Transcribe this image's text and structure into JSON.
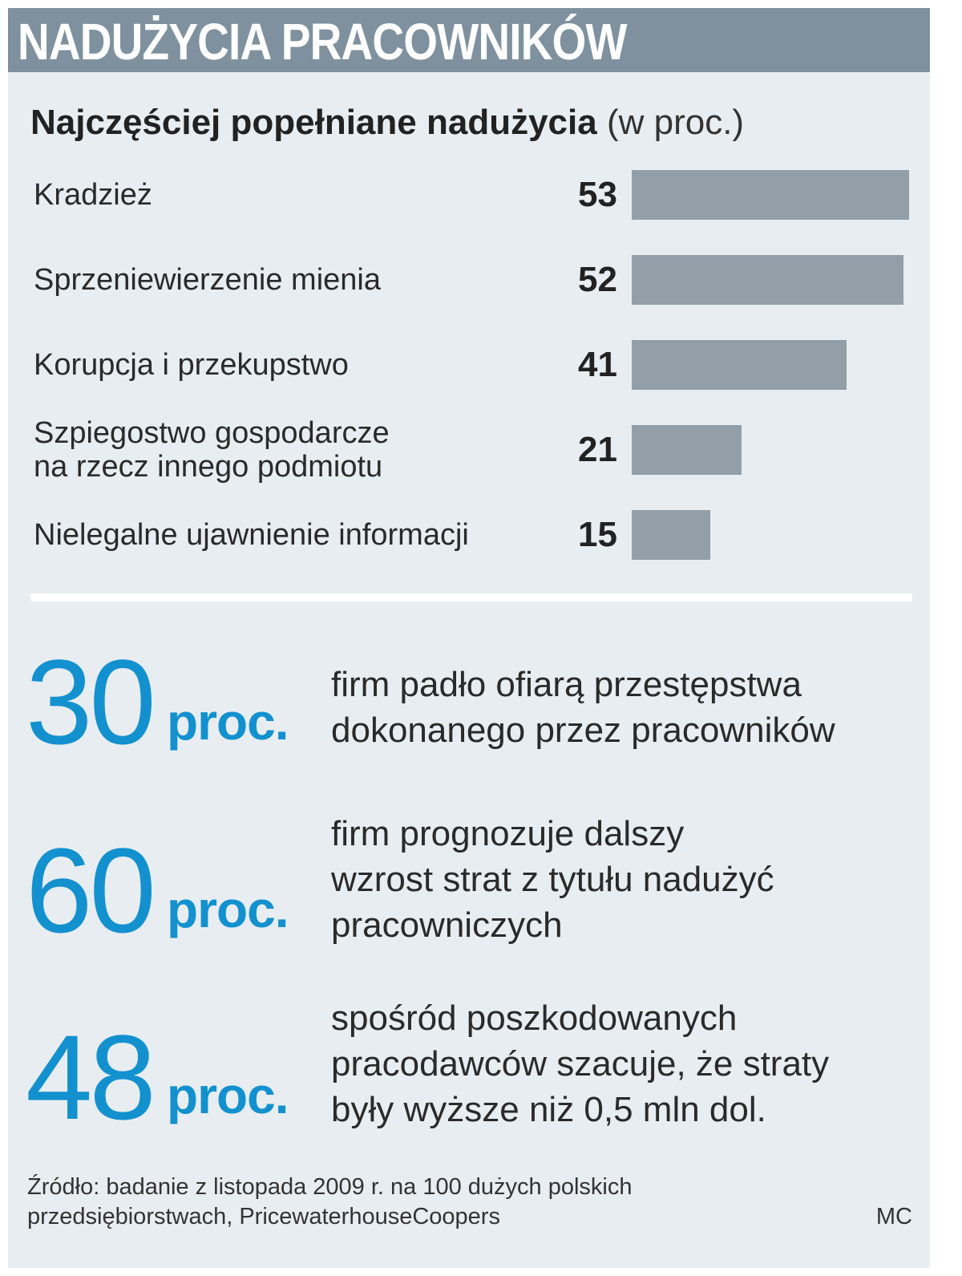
{
  "header": {
    "title": "NADUŻYCIA PRACOWNIKÓW"
  },
  "chart_data": {
    "type": "bar",
    "orientation": "horizontal",
    "title": "Najczęściej popełniane nadużycia",
    "unit_label": "(w proc.)",
    "categories": [
      [
        "Kradzież"
      ],
      [
        "Sprzeniewierzenie mienia"
      ],
      [
        "Korupcja i przekupstwo"
      ],
      [
        "Szpiegostwo gospodarcze",
        "na rzecz innego podmiotu"
      ],
      [
        "Nielegalne ujawnienie informacji"
      ]
    ],
    "values": [
      53,
      52,
      41,
      21,
      15
    ],
    "value_labels": [
      "53",
      "52",
      "41",
      "21",
      "15"
    ],
    "xlim": [
      0,
      53
    ],
    "bar_color": "#929fa9"
  },
  "stats": [
    {
      "number": "30",
      "unit": "proc.",
      "lines": [
        "firm padło ofiarą przestępstwa",
        "dokonanego przez pracowników"
      ]
    },
    {
      "number": "60",
      "unit": "proc.",
      "lines": [
        "firm prognozuje dalszy",
        "wzrost strat z tytułu nadużyć",
        "pracowniczych"
      ]
    },
    {
      "number": "48",
      "unit": "proc.",
      "lines": [
        "spośród poszkodowanych",
        "pracodawców szacuje, że straty",
        "były wyższe niż 0,5 mln dol."
      ]
    }
  ],
  "footer": {
    "source_lines": [
      "Źródło: badanie z listopada 2009 r. na 100 dużych polskich",
      "przedsiębiorstwach, PricewaterhouseCoopers"
    ],
    "author": "MC"
  },
  "colors": {
    "accent": "#1391cf",
    "header_bg": "#7f919e",
    "panel_bg": "#e8edf1"
  }
}
